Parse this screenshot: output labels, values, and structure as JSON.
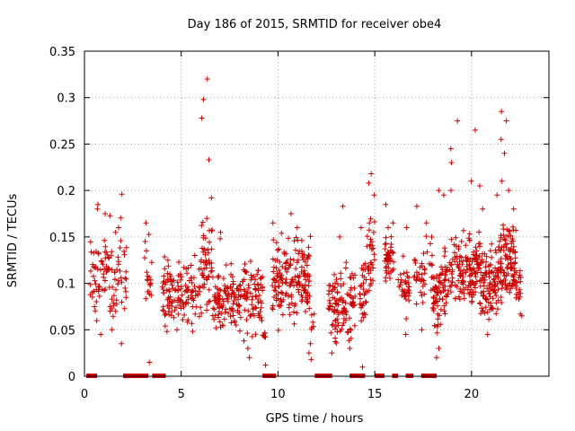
{
  "chart_data": {
    "type": "scatter",
    "title": "Day 186 of 2015, SRMTID for receiver obe4",
    "xlabel": "GPS time / hours",
    "ylabel": "SRMTID / TECUs",
    "xlim": [
      0,
      24
    ],
    "ylim": [
      0,
      0.35
    ],
    "xticks": [
      0,
      5,
      10,
      15,
      20
    ],
    "xtick_labels": [
      "0",
      "5",
      "10",
      "15",
      "20"
    ],
    "yticks": [
      0,
      0.05,
      0.1,
      0.15,
      0.2,
      0.25,
      0.3,
      0.35
    ],
    "ytick_labels": [
      "0",
      "0.05",
      "0.1",
      "0.15",
      "0.2",
      "0.25",
      "0.3",
      "0.35"
    ],
    "grid": true,
    "marker": "plus",
    "color": "#cc0000",
    "series": [
      {
        "name": "SRMTID",
        "clusters": [
          {
            "x": [
              0.3,
              0.8
            ],
            "center": 0.1,
            "spread": 0.045,
            "count": 30,
            "peaks": [
              0.185,
              0.18
            ]
          },
          {
            "x": [
              0.8,
              1.9
            ],
            "center": 0.11,
            "spread": 0.045,
            "count": 60,
            "peaks": [
              0.175,
              0.16,
              0.155,
              0.045,
              0.05
            ]
          },
          {
            "x": [
              1.9,
              2.2
            ],
            "center": 0.09,
            "spread": 0.05,
            "count": 12,
            "peaks": [
              0.196,
              0.035
            ]
          },
          {
            "x": [
              3.1,
              3.5
            ],
            "center": 0.11,
            "spread": 0.04,
            "count": 18,
            "peaks": [
              0.165,
              0.145,
              0.015
            ]
          },
          {
            "x": [
              4.0,
              6.0
            ],
            "center": 0.09,
            "spread": 0.03,
            "count": 130,
            "peaks": [
              0.13,
              0.05
            ]
          },
          {
            "x": [
              6.0,
              6.6
            ],
            "center": 0.12,
            "spread": 0.045,
            "count": 50,
            "peaks": [
              0.32,
              0.298,
              0.278,
              0.233,
              0.192,
              0.17
            ]
          },
          {
            "x": [
              6.6,
              9.2
            ],
            "center": 0.085,
            "spread": 0.035,
            "count": 190,
            "peaks": [
              0.155,
              0.148,
              0.03,
              0.02
            ]
          },
          {
            "x": [
              9.2,
              9.4
            ],
            "center": 0.04,
            "spread": 0.02,
            "count": 6,
            "peaks": [
              0.012
            ]
          },
          {
            "x": [
              9.7,
              11.7
            ],
            "center": 0.105,
            "spread": 0.04,
            "count": 170,
            "peaks": [
              0.175,
              0.165,
              0.16,
              0.025,
              0.035
            ]
          },
          {
            "x": [
              11.7,
              11.9
            ],
            "center": 0.06,
            "spread": 0.03,
            "count": 6,
            "peaks": [
              0.018
            ]
          },
          {
            "x": [
              12.6,
              14.0
            ],
            "center": 0.08,
            "spread": 0.035,
            "count": 110,
            "peaks": [
              0.183,
              0.15,
              0.03,
              0.025
            ]
          },
          {
            "x": [
              14.2,
              14.6
            ],
            "center": 0.09,
            "spread": 0.035,
            "count": 30,
            "peaks": [
              0.01,
              0.16
            ]
          },
          {
            "x": [
              14.6,
              15.0
            ],
            "center": 0.13,
            "spread": 0.04,
            "count": 30,
            "peaks": [
              0.218,
              0.208,
              0.195,
              0.165
            ]
          },
          {
            "x": [
              15.5,
              16.0
            ],
            "center": 0.125,
            "spread": 0.025,
            "count": 45,
            "peaks": [
              0.185,
              0.165,
              0.16
            ]
          },
          {
            "x": [
              16.2,
              16.8
            ],
            "center": 0.095,
            "spread": 0.025,
            "count": 35,
            "peaks": [
              0.16,
              0.045
            ]
          },
          {
            "x": [
              17.0,
              17.6
            ],
            "center": 0.105,
            "spread": 0.03,
            "count": 30,
            "peaks": [
              0.183,
              0.05
            ]
          },
          {
            "x": [
              17.6,
              18.0
            ],
            "center": 0.12,
            "spread": 0.03,
            "count": 10,
            "peaks": [
              0.165
            ]
          },
          {
            "x": [
              18.0,
              18.6
            ],
            "center": 0.085,
            "spread": 0.035,
            "count": 60,
            "peaks": [
              0.2,
              0.195,
              0.02,
              0.03
            ]
          },
          {
            "x": [
              18.6,
              20.4
            ],
            "center": 0.115,
            "spread": 0.035,
            "count": 160,
            "peaks": [
              0.275,
              0.265,
              0.245,
              0.23,
              0.21,
              0.2
            ]
          },
          {
            "x": [
              20.4,
              21.4
            ],
            "center": 0.1,
            "spread": 0.04,
            "count": 110,
            "peaks": [
              0.205,
              0.195,
              0.18,
              0.045
            ]
          },
          {
            "x": [
              21.4,
              22.3
            ],
            "center": 0.125,
            "spread": 0.04,
            "count": 110,
            "peaks": [
              0.285,
              0.275,
              0.255,
              0.24,
              0.21,
              0.2
            ]
          },
          {
            "x": [
              22.3,
              22.6
            ],
            "center": 0.1,
            "spread": 0.03,
            "count": 18,
            "peaks": [
              0.065
            ]
          }
        ]
      }
    ],
    "zero_bars": [
      [
        0.1,
        0.65
      ],
      [
        2.0,
        3.3
      ],
      [
        3.5,
        4.2
      ],
      [
        9.2,
        9.9
      ],
      [
        11.9,
        12.8
      ],
      [
        13.7,
        14.5
      ],
      [
        15.0,
        15.5
      ],
      [
        15.9,
        16.2
      ],
      [
        16.6,
        17.0
      ],
      [
        17.4,
        18.2
      ]
    ]
  }
}
